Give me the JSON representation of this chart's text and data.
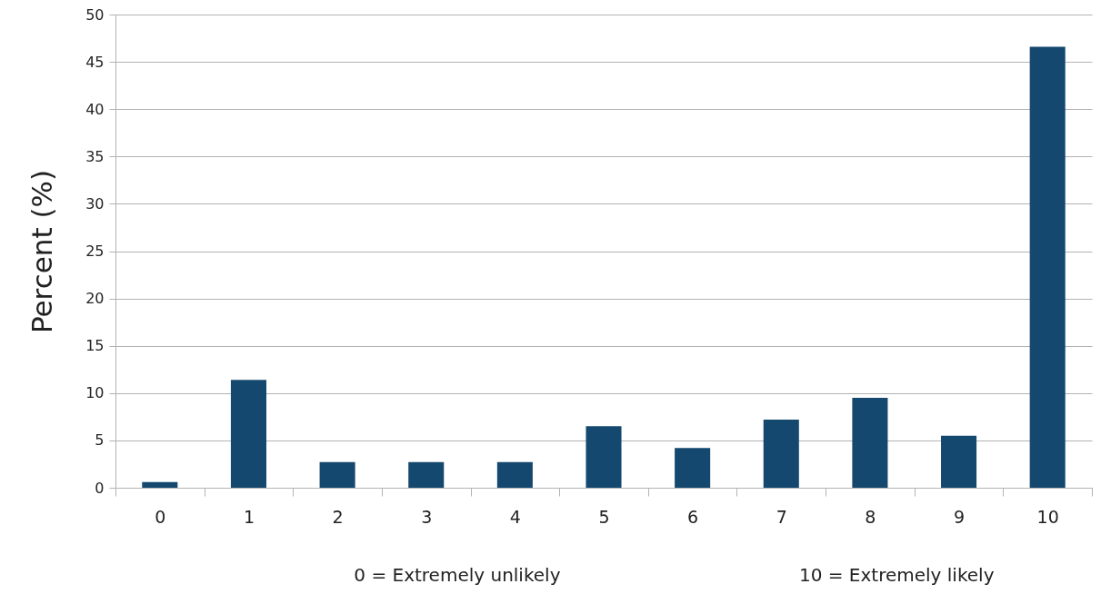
{
  "chart_data": {
    "type": "bar",
    "ylabel": "Percent (%)",
    "categories": [
      "0",
      "1",
      "2",
      "3",
      "4",
      "5",
      "6",
      "7",
      "8",
      "9",
      "10"
    ],
    "values": [
      0.6,
      11.4,
      2.7,
      2.7,
      2.7,
      6.5,
      4.2,
      7.2,
      9.5,
      5.5,
      46.6
    ],
    "color": "#15486f",
    "ylim": [
      0,
      50
    ],
    "yticks": [
      0,
      5,
      10,
      15,
      20,
      25,
      30,
      35,
      40,
      45,
      50
    ],
    "grid": "y",
    "annotations": [
      "0 = Extremely unlikely",
      "10 = Extremely likely"
    ]
  }
}
